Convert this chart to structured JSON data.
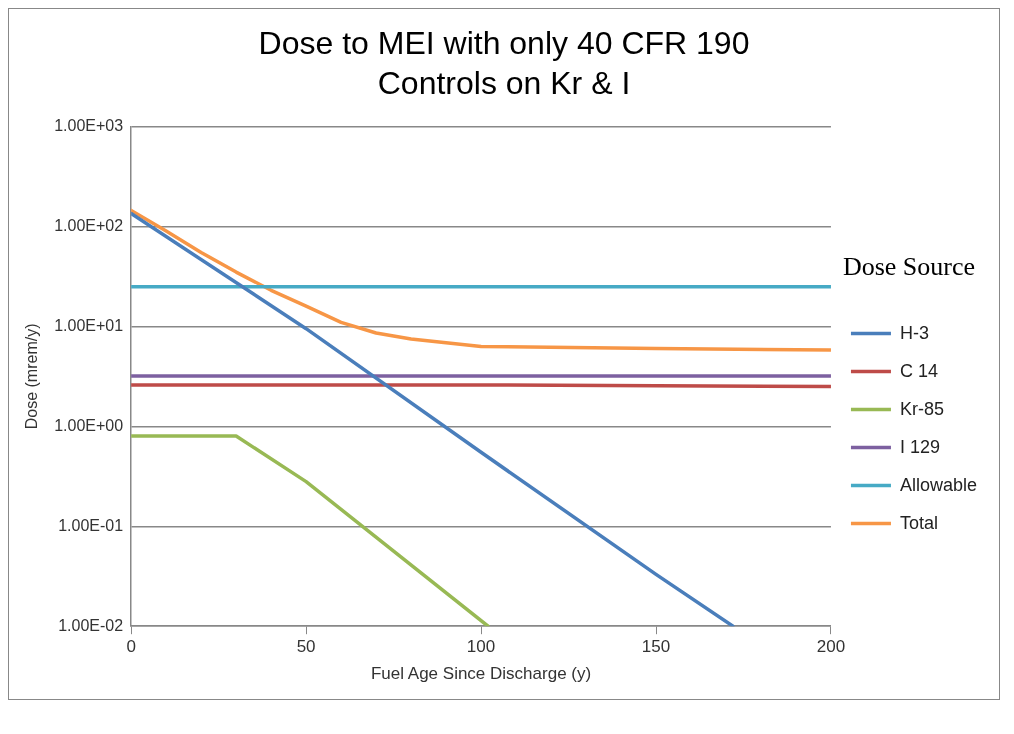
{
  "chart_data": {
    "type": "line",
    "title": "Dose to MEI with only 40 CFR 190 Controls on Kr & I",
    "xlabel": "Fuel Age Since Discharge (y)",
    "ylabel": "Dose (mrem/y)",
    "legend_title": "Dose Source",
    "log": "y",
    "grid": "y",
    "legend": "right",
    "marker": "none",
    "line_style": "solid",
    "xlim": [
      0,
      200
    ],
    "xticks": [
      0,
      50,
      100,
      150,
      200
    ],
    "ylim": [
      0.01,
      1000
    ],
    "yticks": [
      {
        "value": 0.01,
        "label": "1.00E-02"
      },
      {
        "value": 0.1,
        "label": "1.00E-01"
      },
      {
        "value": 1,
        "label": "1.00E+00"
      },
      {
        "value": 10,
        "label": "1.00E+01"
      },
      {
        "value": 100,
        "label": "1.00E+02"
      },
      {
        "value": 1000,
        "label": "1.00E+03"
      }
    ],
    "series": [
      {
        "name": "H-3",
        "color": "#4a7ebb",
        "x": [
          0,
          50,
          100,
          150,
          172
        ],
        "values": [
          135,
          9.5,
          0.55,
          0.033,
          0.01
        ]
      },
      {
        "name": "C 14",
        "color": "#be4b48",
        "x": [
          0,
          50,
          100,
          150,
          200
        ],
        "values": [
          2.6,
          2.6,
          2.6,
          2.55,
          2.5
        ]
      },
      {
        "name": "Kr-85",
        "color": "#98b954",
        "x": [
          0,
          30,
          50,
          102
        ],
        "values": [
          0.8,
          0.8,
          0.28,
          0.01
        ]
      },
      {
        "name": "I 129",
        "color": "#7d60a0",
        "x": [
          0,
          200
        ],
        "values": [
          3.2,
          3.2
        ]
      },
      {
        "name": "Allowable",
        "color": "#46aac5",
        "x": [
          0,
          200
        ],
        "values": [
          25,
          25
        ]
      },
      {
        "name": "Total",
        "color": "#f79646",
        "x": [
          0,
          10,
          20,
          30,
          40,
          50,
          60,
          70,
          80,
          100,
          150,
          200
        ],
        "values": [
          145,
          90,
          55,
          35,
          23,
          16,
          11,
          8.6,
          7.5,
          6.3,
          6.0,
          5.8
        ]
      }
    ]
  }
}
